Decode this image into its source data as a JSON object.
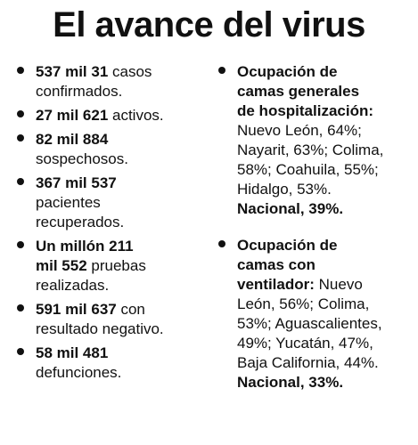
{
  "title": "El avance del virus",
  "left_items": [
    {
      "lines": [
        {
          "bold": "537 mil 31",
          "normal": " casos"
        },
        {
          "bold": "",
          "normal": "confirmados."
        }
      ]
    },
    {
      "lines": [
        {
          "bold": "27 mil 621",
          "normal": " activos."
        }
      ]
    },
    {
      "lines": [
        {
          "bold": "82 mil 884",
          "normal": ""
        },
        {
          "bold": "",
          "normal": "sospechosos."
        }
      ]
    },
    {
      "lines": [
        {
          "bold": "367 mil 537",
          "normal": ""
        },
        {
          "bold": "",
          "normal": "pacientes"
        },
        {
          "bold": "",
          "normal": "recuperados."
        }
      ]
    },
    {
      "lines": [
        {
          "bold": "Un millón 211",
          "normal": ""
        },
        {
          "bold": "mil 552",
          "normal": " pruebas"
        },
        {
          "bold": "",
          "normal": "realizadas."
        }
      ]
    },
    {
      "lines": [
        {
          "bold": "591 mil 637",
          "normal": " con"
        },
        {
          "bold": "",
          "normal": "resultado negativo."
        }
      ]
    },
    {
      "lines": [
        {
          "bold": "58 mil 481",
          "normal": ""
        },
        {
          "bold": "",
          "normal": "defunciones."
        }
      ]
    }
  ],
  "right_items": [
    {
      "lines": [
        {
          "bold": "Ocupación de",
          "normal": ""
        },
        {
          "bold": "camas generales",
          "normal": ""
        },
        {
          "bold": "de hospitalización:",
          "normal": ""
        },
        {
          "bold": "",
          "normal": "Nuevo León, 64%;"
        },
        {
          "bold": "",
          "normal": "Nayarit, 63%; Colima,"
        },
        {
          "bold": "",
          "normal": "58%; Coahuila, 55%;"
        },
        {
          "bold": "",
          "normal": "Hidalgo, 53%."
        },
        {
          "bold": "Nacional, 39%.",
          "normal": ""
        }
      ]
    },
    {
      "lines": [
        {
          "bold": "Ocupación de",
          "normal": ""
        },
        {
          "bold": "camas con",
          "normal": ""
        },
        {
          "bold": "ventilador:",
          "normal": " Nuevo"
        },
        {
          "bold": "",
          "normal": "León, 56%; Colima,"
        },
        {
          "bold": "",
          "normal": "53%; Aguascalientes,"
        },
        {
          "bold": "",
          "normal": "49%; Yucatán, 47%,"
        },
        {
          "bold": "",
          "normal": "Baja California, 44%."
        },
        {
          "bold": "Nacional, 33%.",
          "normal": ""
        }
      ]
    }
  ]
}
